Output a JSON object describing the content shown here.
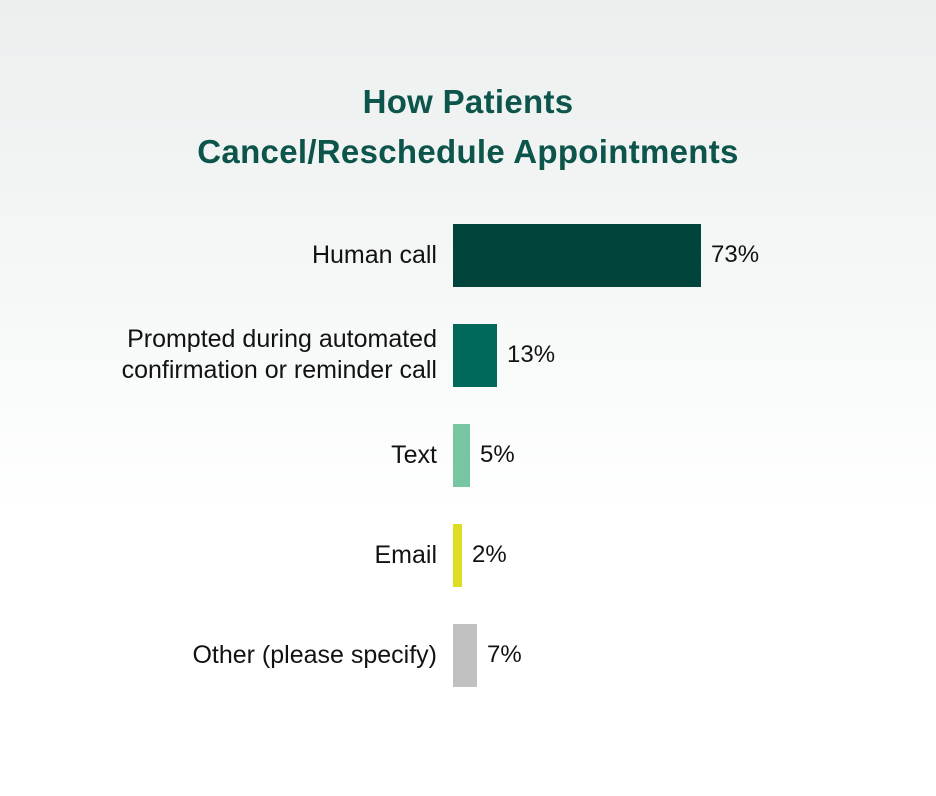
{
  "title": {
    "line1": "How Patients",
    "line2": "Cancel/Reschedule Appointments"
  },
  "colors": {
    "title_text": "#0d544b",
    "label_text": "#121212",
    "background_top": "#ebefee",
    "background_bottom": "#ffffff"
  },
  "chart_data": {
    "type": "bar",
    "orientation": "horizontal",
    "title": "How Patients Cancel/Reschedule Appointments",
    "categories": [
      "Human call",
      "Prompted during automated\nconfirmation or reminder call",
      "Text",
      "Email",
      "Other (please specify)"
    ],
    "values": [
      73,
      13,
      5,
      2,
      7
    ],
    "value_labels": [
      "73%",
      "13%",
      "5%",
      "2%",
      "7%"
    ],
    "bar_colors": [
      "#00443c",
      "#00695c",
      "#77c6a1",
      "#dddd25",
      "#c1c1c1"
    ],
    "xlabel": "",
    "ylabel": "",
    "xlim": [
      0,
      100
    ],
    "grid": false,
    "legend": false,
    "value_labels_position": "right-of-bar"
  }
}
